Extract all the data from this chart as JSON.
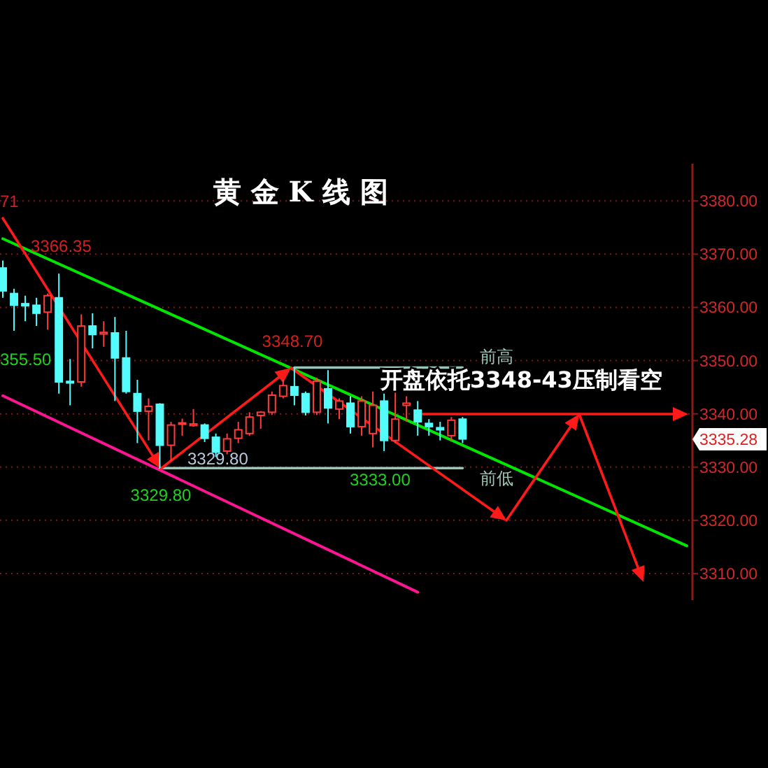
{
  "chart_data": {
    "type": "candlestick",
    "title": "黄 金 K 线 图",
    "categories": [
      null,
      null,
      null,
      null,
      null,
      null,
      null,
      null,
      null,
      null,
      null,
      null,
      null,
      null,
      null,
      null,
      null,
      null,
      null,
      null,
      null,
      null,
      null,
      null,
      null,
      null,
      null,
      null,
      null,
      null,
      null,
      null,
      null,
      null,
      null,
      null,
      null,
      null,
      null,
      null,
      null,
      null,
      null,
      null,
      null,
      null,
      null,
      null,
      null,
      null,
      null,
      null,
      null,
      null,
      null,
      null,
      null,
      null,
      null,
      null,
      null,
      null
    ],
    "ohlc": [
      [
        3367.4,
        3368.8,
        3361.8,
        3363.1
      ],
      [
        3362.6,
        3363.5,
        3355.6,
        3360.4
      ],
      [
        3360.7,
        3362.2,
        3357.4,
        3360.3
      ],
      [
        3360.4,
        3361.8,
        3356.5,
        3358.9
      ],
      [
        3359.1,
        3362.6,
        3355.8,
        3362.2
      ],
      [
        3361.8,
        3366.35,
        3343.8,
        3346.0
      ],
      [
        3346.1,
        3350.3,
        3341.6,
        3345.8
      ],
      [
        3346.0,
        3358.7,
        3345.1,
        3356.5
      ],
      [
        3356.5,
        3358.9,
        3352.3,
        3354.9
      ],
      [
        3355.0,
        3357.4,
        3352.6,
        3355.3
      ],
      [
        3355.2,
        3358.2,
        3342.4,
        3350.5
      ],
      [
        3350.5,
        3355.6,
        3343.8,
        3344.2
      ],
      [
        3343.8,
        3346.4,
        3334.5,
        3340.5
      ],
      [
        3340.5,
        3342.9,
        3335.0,
        3341.4
      ],
      [
        3341.8,
        3342.0,
        3329.8,
        3334.1
      ],
      [
        3334.1,
        3338.5,
        3331.2,
        3337.9
      ],
      [
        3338.1,
        3339.1,
        3335.9,
        3338.3
      ],
      [
        3337.8,
        3340.9,
        3337.6,
        3338.1
      ],
      [
        3337.9,
        3338.2,
        3334.7,
        3335.4
      ],
      [
        3335.6,
        3336.3,
        3331.9,
        3332.8
      ],
      [
        3333.0,
        3336.3,
        3332.4,
        3335.3
      ],
      [
        3335.4,
        3338.5,
        3334.5,
        3337.0
      ],
      [
        3336.3,
        3340.3,
        3335.9,
        3339.4
      ],
      [
        3339.7,
        3340.5,
        3337.2,
        3340.3
      ],
      [
        3340.3,
        3344.2,
        3339.8,
        3343.5
      ],
      [
        3343.3,
        3346.4,
        3342.9,
        3345.3
      ],
      [
        3345.1,
        3348.7,
        3341.6,
        3343.5
      ],
      [
        3343.8,
        3344.2,
        3339.7,
        3340.3
      ],
      [
        3340.3,
        3346.8,
        3339.8,
        3346.1
      ],
      [
        3344.7,
        3348.2,
        3338.2,
        3341.1
      ],
      [
        3340.9,
        3342.9,
        3339.0,
        3342.4
      ],
      [
        3342.0,
        3343.3,
        3336.3,
        3337.6
      ],
      [
        3337.6,
        3343.3,
        3335.9,
        3342.4
      ],
      [
        3336.3,
        3344.2,
        3333.7,
        3341.6
      ],
      [
        3342.4,
        3343.8,
        3333.0,
        3335.0
      ],
      [
        3335.0,
        3344.2,
        3334.5,
        3339.0
      ],
      [
        3341.6,
        3343.3,
        3338.5,
        3342.0
      ],
      [
        3340.7,
        3342.4,
        3335.9,
        3338.5
      ],
      [
        3338.2,
        3339.0,
        3335.9,
        3337.6
      ],
      [
        3337.4,
        3338.5,
        3335.0,
        3337.0
      ],
      [
        3335.9,
        3339.4,
        3335.0,
        3338.8
      ],
      [
        3339.0,
        3339.4,
        3334.5,
        3335.28
      ],
      null,
      null,
      null,
      null,
      null,
      null,
      null,
      null,
      null,
      null,
      null,
      null,
      null,
      null,
      null,
      null,
      null,
      null,
      null,
      null
    ],
    "colors": [
      "#54fcfc",
      "#54fcfc",
      "#54fcfc",
      "#54fcfc",
      "#ff3c3c",
      "#54fcfc",
      "#54fcfc",
      "#ff3c3c",
      "#54fcfc",
      "#ff3c3c",
      "#54fcfc",
      "#54fcfc",
      "#54fcfc",
      "#ff3c3c",
      "#54fcfc",
      "#ff3c3c",
      "#ff3c3c",
      "#ff3c3c",
      "#54fcfc",
      "#54fcfc",
      "#ff3c3c",
      "#ff3c3c",
      "#ff3c3c",
      "#ff3c3c",
      "#ff3c3c",
      "#ff3c3c",
      "#54fcfc",
      "#54fcfc",
      "#ff3c3c",
      "#54fcfc",
      "#ff3c3c",
      "#54fcfc",
      "#ff3c3c",
      "#ff3c3c",
      "#54fcfc",
      "#ff3c3c",
      "#ff3c3c",
      "#54fcfc",
      "#54fcfc",
      "#54fcfc",
      "#ff3c3c",
      "#54fcfc",
      null,
      null,
      null,
      null,
      null,
      null,
      null,
      null,
      null,
      null,
      null,
      null,
      null,
      null,
      null,
      null,
      null,
      null,
      null,
      null
    ],
    "series": [
      {
        "type": "line",
        "color": "#00e600",
        "values": [
          3372.9,
          null,
          null,
          null,
          null,
          null,
          null,
          null,
          null,
          null,
          null,
          null,
          null,
          null,
          null,
          null,
          null,
          null,
          null,
          null,
          null,
          null,
          null,
          null,
          null,
          null,
          null,
          null,
          null,
          null,
          null,
          null,
          null,
          null,
          null,
          null,
          null,
          null,
          null,
          null,
          null,
          null,
          null,
          null,
          null,
          null,
          null,
          null,
          null,
          null,
          null,
          null,
          null,
          null,
          null,
          null,
          null,
          null,
          null,
          null,
          null,
          3315.2
        ]
      },
      {
        "type": "line",
        "color": "#ff1493",
        "values": [
          3343.4,
          null,
          null,
          null,
          null,
          null,
          null,
          null,
          null,
          null,
          null,
          null,
          null,
          null,
          null,
          null,
          null,
          null,
          null,
          null,
          null,
          null,
          null,
          null,
          null,
          null,
          null,
          null,
          null,
          null,
          null,
          null,
          null,
          null,
          null,
          null,
          null,
          3306.5,
          null,
          null,
          null,
          null,
          null,
          null,
          null,
          null,
          null,
          null,
          null,
          null,
          null,
          null,
          null,
          null,
          null,
          null,
          null,
          null,
          null,
          null,
          null,
          null
        ]
      },
      {
        "type": "line",
        "color": "#9cc4b8",
        "values": [
          null,
          null,
          null,
          null,
          null,
          null,
          null,
          null,
          null,
          null,
          null,
          null,
          null,
          null,
          null,
          null,
          null,
          null,
          null,
          null,
          null,
          null,
          null,
          null,
          null,
          null,
          3348.7,
          null,
          null,
          null,
          null,
          null,
          null,
          null,
          null,
          null,
          null,
          null,
          null,
          null,
          null,
          3348.7,
          null,
          null,
          null,
          null,
          null,
          null,
          null,
          null,
          null,
          null,
          null,
          null,
          null,
          null,
          null,
          null,
          null,
          null,
          null,
          null
        ]
      },
      {
        "type": "line",
        "color": "#9cc4b8",
        "values": [
          null,
          null,
          null,
          null,
          null,
          null,
          null,
          null,
          null,
          null,
          null,
          null,
          null,
          null,
          3329.8,
          null,
          null,
          null,
          null,
          null,
          null,
          null,
          null,
          null,
          null,
          null,
          null,
          null,
          null,
          null,
          null,
          null,
          null,
          null,
          null,
          null,
          null,
          null,
          null,
          null,
          null,
          3329.8,
          null,
          null,
          null,
          null,
          null,
          null,
          null,
          null,
          null,
          null,
          null,
          null,
          null,
          null,
          null,
          null,
          null,
          null,
          null,
          null
        ]
      }
    ],
    "ylim": [
      3305,
      3387
    ],
    "yticks": [
      {
        "value": 3310,
        "label": "3310.00"
      },
      {
        "value": 3320,
        "label": "3320.00"
      },
      {
        "value": 3330,
        "label": "3330.00"
      },
      {
        "value": 3340,
        "label": "3340.00"
      },
      {
        "value": 3350,
        "label": "3350.00"
      },
      {
        "value": 3360,
        "label": "3360.00"
      },
      {
        "value": 3370,
        "label": "3370.00"
      },
      {
        "value": 3380,
        "label": "3380.00"
      }
    ],
    "grid": "y",
    "tick_labels": "y",
    "annotations": [
      "71",
      "3366.35",
      "355.50",
      "3329.80",
      "3329.80",
      "3348.70",
      "3333.00",
      "前高",
      "前低",
      "开盘依托3348-43压制看空",
      "3335.28"
    ]
  }
}
